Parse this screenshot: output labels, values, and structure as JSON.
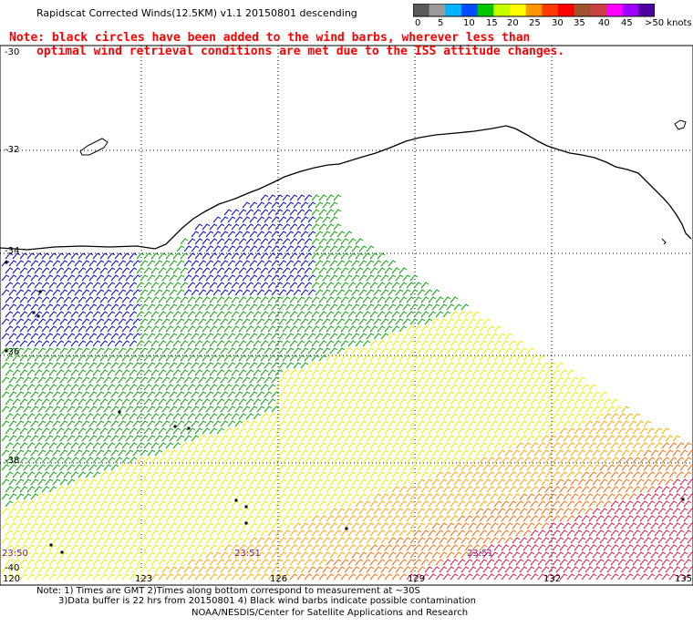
{
  "title": "Rapidscat Corrected Winds(12.5KM) v1.1 20150801 descending",
  "note_line1": "Note: black circles have been added to the wind barbs, wherever less than",
  "note_line2": "optimal wind retrieval conditions are met due to the ISS attitude changes.",
  "colorbar": {
    "unit": "knots",
    "labels": [
      "0",
      "5",
      "10",
      "15",
      "20",
      "25",
      "30",
      "35",
      "40",
      "45",
      ">50 knots"
    ],
    "colors": [
      "#5a5a5a",
      "#9a9a9a",
      "#00b4ff",
      "#0050ff",
      "#00c800",
      "#c8ff00",
      "#ffff00",
      "#ff9600",
      "#ff3c00",
      "#ff0000",
      "#a0522d",
      "#c84040",
      "#ff00ff",
      "#a000ff",
      "#5000a0"
    ]
  },
  "lat_labels": [
    "-30",
    "-32",
    "-34",
    "-36",
    "-38",
    "-40"
  ],
  "lon_labels": [
    "120",
    "123",
    "126",
    "129",
    "132",
    "135"
  ],
  "time_labels": [
    "23:50",
    "23:51",
    "23:51"
  ],
  "footer_line1": "Note: 1) Times are GMT 2)Times along bottom correspond to measurement at ~30S",
  "footer_line2": "3)Data buffer is 22 hrs from 20150801 4) Black wind barbs indicate possible contamination",
  "footer_line3": "NOAA/NESDIS/Center for Satellite Applications and Research"
}
